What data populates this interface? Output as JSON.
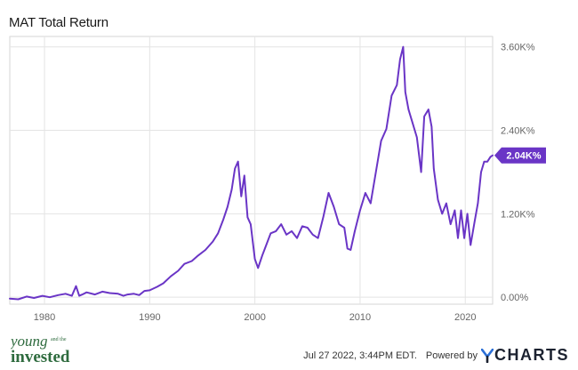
{
  "header": {
    "title": "MAT Total Return"
  },
  "footer": {
    "timestamp": "Jul 27 2022, 3:44PM EDT.",
    "powered_by": "Powered by",
    "provider": "CHARTS",
    "brand_line1": "young",
    "brand_small": "and the",
    "brand_line2": "invested"
  },
  "colors": {
    "line": "#6a35c6",
    "badge_bg": "#6a35c6",
    "badge_text": "#ffffff",
    "grid": "#e4e4e4",
    "axis_text": "#666666",
    "brand_green": "#2e6b3e"
  },
  "chart_data": {
    "type": "line",
    "title": "MAT Total Return",
    "xlabel": "",
    "ylabel": "",
    "x_range": [
      1976.7,
      2022.6
    ],
    "ylim": [
      -0.1,
      3.75
    ],
    "y_unit": "K%",
    "x_ticks": [
      1980,
      1990,
      2000,
      2010,
      2020
    ],
    "x_tick_labels": [
      "1980",
      "1990",
      "2000",
      "2010",
      "2020"
    ],
    "y_ticks": [
      0,
      1.2,
      2.4,
      3.6
    ],
    "y_tick_labels": [
      "0.00%",
      "1.20K%",
      "2.40K%",
      "3.60K%"
    ],
    "grid": true,
    "last_value_label": "2.04K%",
    "last_value": 2.04,
    "series": [
      {
        "x": [
          1976.7,
          1977.5,
          1978.3,
          1979.0,
          1979.8,
          1980.5,
          1981.3,
          1982.0,
          1982.6,
          1983.0,
          1983.3,
          1983.6,
          1984.0,
          1984.8,
          1985.5,
          1986.2,
          1987.0,
          1987.5,
          1987.9,
          1988.5,
          1989.0,
          1989.5,
          1990.0,
          1990.7,
          1991.3,
          1992.0,
          1992.7,
          1993.3,
          1994.0,
          1994.6,
          1995.3,
          1996.0,
          1996.5,
          1997.0,
          1997.4,
          1997.8,
          1998.1,
          1998.4,
          1998.7,
          1999.0,
          1999.3,
          1999.6,
          2000.0,
          2000.3,
          2000.7,
          2001.0,
          2001.5,
          2002.0,
          2002.5,
          2003.0,
          2003.5,
          2004.0,
          2004.5,
          2005.0,
          2005.5,
          2006.0,
          2006.5,
          2007.0,
          2007.5,
          2008.0,
          2008.5,
          2008.8,
          2009.1,
          2009.5,
          2010.0,
          2010.5,
          2011.0,
          2011.5,
          2012.0,
          2012.5,
          2013.0,
          2013.5,
          2013.8,
          2014.1,
          2014.3,
          2014.6,
          2015.0,
          2015.4,
          2015.8,
          2016.1,
          2016.5,
          2016.8,
          2017.0,
          2017.4,
          2017.8,
          2018.2,
          2018.6,
          2019.0,
          2019.3,
          2019.6,
          2019.9,
          2020.2,
          2020.5,
          2020.9,
          2021.2,
          2021.5,
          2021.8,
          2022.1,
          2022.4,
          2022.6
        ],
        "y": [
          -0.02,
          -0.03,
          0.01,
          -0.01,
          0.02,
          0.0,
          0.03,
          0.05,
          0.02,
          0.16,
          0.02,
          0.04,
          0.07,
          0.04,
          0.08,
          0.06,
          0.05,
          0.02,
          0.04,
          0.05,
          0.03,
          0.09,
          0.1,
          0.15,
          0.2,
          0.3,
          0.38,
          0.48,
          0.52,
          0.6,
          0.68,
          0.8,
          0.92,
          1.12,
          1.3,
          1.55,
          1.85,
          1.95,
          1.45,
          1.75,
          1.15,
          1.05,
          0.55,
          0.42,
          0.6,
          0.72,
          0.92,
          0.95,
          1.05,
          0.9,
          0.95,
          0.85,
          1.02,
          1.0,
          0.9,
          0.85,
          1.15,
          1.5,
          1.3,
          1.05,
          1.0,
          0.7,
          0.68,
          0.95,
          1.25,
          1.5,
          1.35,
          1.8,
          2.25,
          2.42,
          2.9,
          3.05,
          3.42,
          3.6,
          2.95,
          2.7,
          2.5,
          2.3,
          1.8,
          2.6,
          2.7,
          2.45,
          1.85,
          1.4,
          1.2,
          1.35,
          1.05,
          1.25,
          0.85,
          1.25,
          0.85,
          1.2,
          0.75,
          1.1,
          1.35,
          1.8,
          1.95,
          1.95,
          2.02,
          2.04
        ]
      }
    ]
  }
}
